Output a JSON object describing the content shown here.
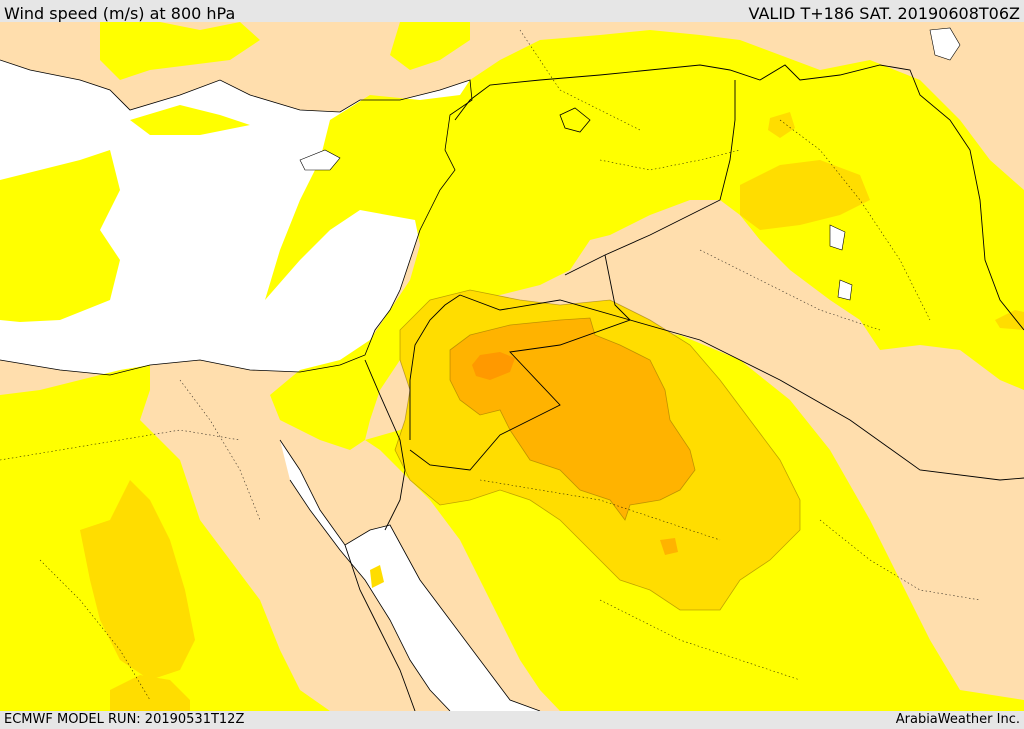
{
  "header": {
    "title": "Wind speed (m/s) at 800 hPa",
    "valid": "VALID T+186 SAT. 20190608T06Z"
  },
  "footer": {
    "model_run": "ECMWF MODEL RUN: 20190531T12Z",
    "credit": "ArabiaWeather Inc."
  },
  "colors": {
    "land_low": "#ffdead",
    "band_1": "#ffff00",
    "band_2": "#ffdd00",
    "band_3": "#ffb300",
    "band_4": "#ff9900",
    "sea": "#ffffff",
    "chrome": "#e6e6e6"
  }
}
